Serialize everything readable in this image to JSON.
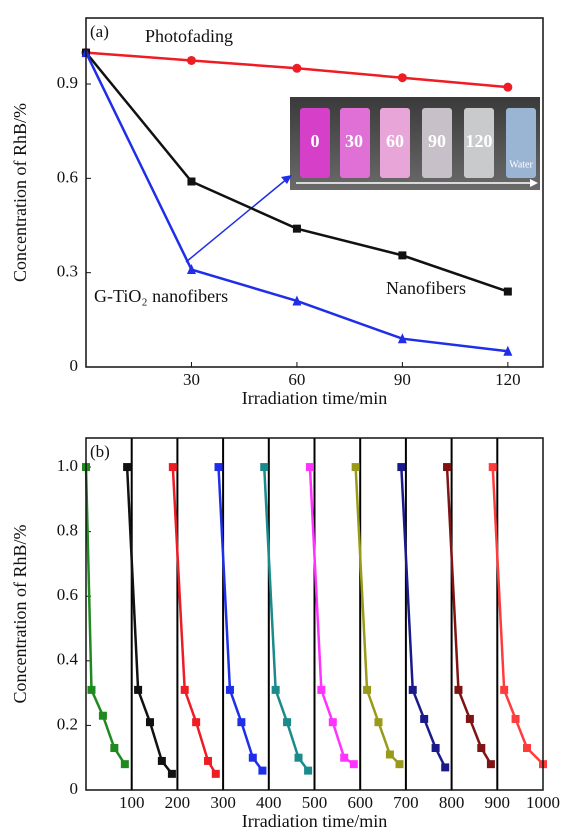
{
  "chart_data": [
    {
      "type": "line",
      "panel_label": "(a)",
      "x_label": "Irradiation time/min",
      "y_label": "Concentration of RhB/%",
      "x": [
        0,
        30,
        60,
        90,
        120
      ],
      "xlim": [
        0,
        130
      ],
      "xticks": [
        30,
        60,
        90,
        120
      ],
      "ylim": [
        0,
        1.11
      ],
      "yticks": [
        0,
        0.3,
        0.6,
        0.9
      ],
      "grid": false,
      "series": [
        {
          "name": "Photofading",
          "color": "#ee1c24",
          "marker": "circle",
          "values": [
            1.0,
            0.975,
            0.95,
            0.92,
            0.89
          ]
        },
        {
          "name": "Nanofibers",
          "color": "#111111",
          "marker": "square",
          "values": [
            1.0,
            0.59,
            0.44,
            0.355,
            0.24
          ]
        },
        {
          "name": "G-TiO₂ nanofibers",
          "color": "#1f2ee8",
          "marker": "triangle",
          "values": [
            1.0,
            0.31,
            0.21,
            0.09,
            0.05
          ]
        }
      ],
      "inset_labels": [
        "0",
        "30",
        "60",
        "90",
        "120",
        "Water"
      ]
    },
    {
      "type": "line",
      "panel_label": "(b)",
      "x_label": "Irradiation time/min",
      "y_label": "Concentration of RhB/%",
      "xlim": [
        0,
        1000
      ],
      "xticks": [
        100,
        200,
        300,
        400,
        500,
        600,
        700,
        800,
        900,
        1000
      ],
      "ylim": [
        0,
        1.09
      ],
      "yticks": [
        0,
        0.2,
        0.4,
        0.6,
        0.8,
        {
          "value": 1.0,
          "label": "1.0"
        }
      ],
      "grid": false,
      "separators": true,
      "series": [
        {
          "color": "#1f8a1f",
          "marker": "square",
          "x": [
            0,
            12,
            37,
            62,
            85
          ],
          "values": [
            1.0,
            0.31,
            0.23,
            0.13,
            0.08
          ]
        },
        {
          "color": "#111111",
          "marker": "square",
          "x": [
            90,
            114,
            140,
            166,
            188
          ],
          "values": [
            1.0,
            0.31,
            0.21,
            0.09,
            0.05
          ]
        },
        {
          "color": "#ee1c24",
          "marker": "square",
          "x": [
            190,
            216,
            241,
            267,
            284
          ],
          "values": [
            1.0,
            0.31,
            0.21,
            0.09,
            0.05
          ]
        },
        {
          "color": "#1f2ee8",
          "marker": "square",
          "x": [
            290,
            315,
            340,
            365,
            386
          ],
          "values": [
            1.0,
            0.31,
            0.21,
            0.1,
            0.06
          ]
        },
        {
          "color": "#1a8a8a",
          "marker": "square",
          "x": [
            390,
            415,
            440,
            465,
            486
          ],
          "values": [
            1.0,
            0.31,
            0.21,
            0.1,
            0.06
          ]
        },
        {
          "color": "#ff33ff",
          "marker": "square",
          "x": [
            490,
            515,
            540,
            565,
            586
          ],
          "values": [
            1.0,
            0.31,
            0.21,
            0.1,
            0.08
          ]
        },
        {
          "color": "#9a9a1a",
          "marker": "square",
          "x": [
            590,
            615,
            640,
            665,
            686
          ],
          "values": [
            1.0,
            0.31,
            0.21,
            0.11,
            0.08
          ]
        },
        {
          "color": "#1a1a8a",
          "marker": "square",
          "x": [
            690,
            715,
            740,
            765,
            786
          ],
          "values": [
            1.0,
            0.31,
            0.22,
            0.13,
            0.07
          ]
        },
        {
          "color": "#801414",
          "marker": "square",
          "x": [
            790,
            815,
            840,
            865,
            886
          ],
          "values": [
            1.0,
            0.31,
            0.22,
            0.13,
            0.08
          ]
        },
        {
          "color": "#ff3c3c",
          "marker": "square",
          "x": [
            890,
            915,
            940,
            965,
            1000
          ],
          "values": [
            1.0,
            0.31,
            0.22,
            0.13,
            0.08
          ]
        }
      ]
    }
  ]
}
